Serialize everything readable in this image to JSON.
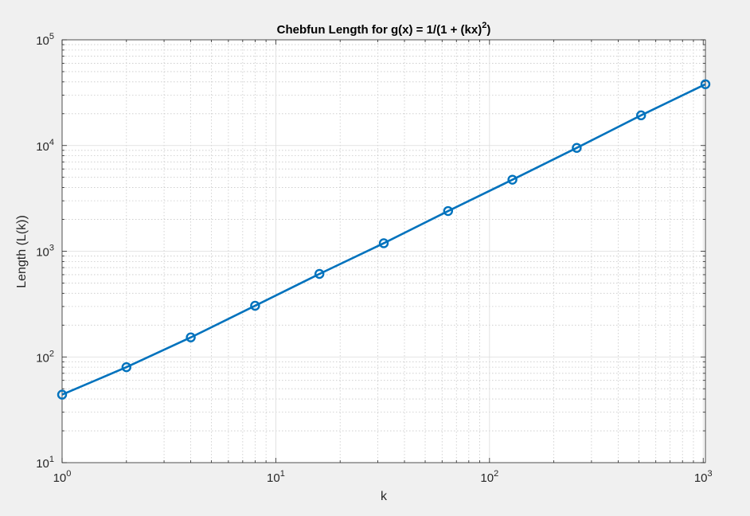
{
  "chart_data": {
    "type": "line",
    "title_main": "Chebfun Length for g(x) = 1/(1 + (kx)",
    "title_sup": "2",
    "title_end": ")",
    "xlabel": "k",
    "ylabel": "Length (L(k))",
    "x_scale": "log",
    "y_scale": "log",
    "xlim": [
      1,
      1024
    ],
    "ylim": [
      10,
      100000
    ],
    "grid": true,
    "minor_grid": true,
    "x_ticks": [
      {
        "base": "10",
        "exp": "0",
        "value": 1
      },
      {
        "base": "10",
        "exp": "1",
        "value": 10
      },
      {
        "base": "10",
        "exp": "2",
        "value": 100
      },
      {
        "base": "10",
        "exp": "3",
        "value": 1000
      }
    ],
    "y_ticks": [
      {
        "base": "10",
        "exp": "1",
        "value": 10
      },
      {
        "base": "10",
        "exp": "2",
        "value": 100
      },
      {
        "base": "10",
        "exp": "3",
        "value": 1000
      },
      {
        "base": "10",
        "exp": "4",
        "value": 10000
      },
      {
        "base": "10",
        "exp": "5",
        "value": 100000
      }
    ],
    "series": [
      {
        "color": "#0072bd",
        "marker": "circle",
        "x": [
          1,
          2,
          4,
          8,
          16,
          32,
          64,
          128,
          256,
          512,
          1024
        ],
        "y": [
          44,
          80,
          153,
          305,
          610,
          1190,
          2400,
          4750,
          9500,
          19300,
          38000
        ]
      }
    ]
  }
}
